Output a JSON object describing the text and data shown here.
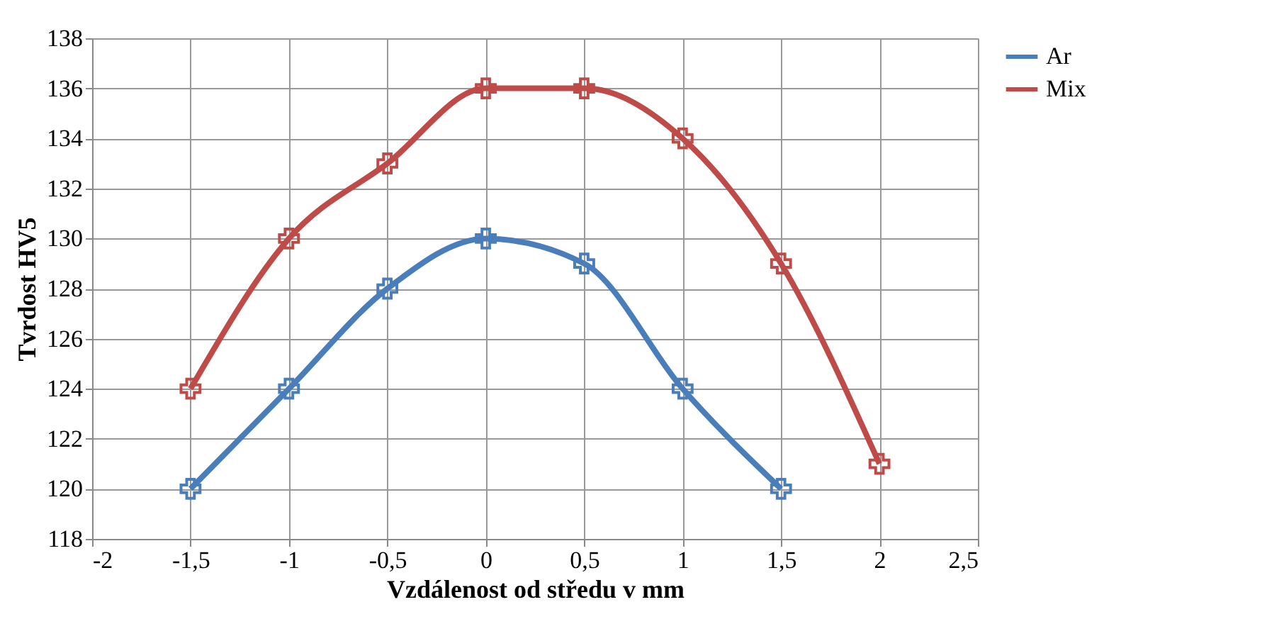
{
  "chart_data": {
    "type": "line",
    "xlabel": "Vzdálenost od středu v mm",
    "ylabel": "Tvrdost HV5",
    "series": [
      {
        "name": "Ar",
        "color": "#4a7ebb",
        "x": [
          -1.5,
          -1,
          -0.5,
          0,
          0.5,
          1,
          1.5
        ],
        "values": [
          120,
          124,
          128,
          130,
          129,
          124,
          120
        ]
      },
      {
        "name": "Mix",
        "color": "#be4b48",
        "x": [
          -1.5,
          -1,
          -0.5,
          0,
          0.5,
          1,
          1.5,
          2
        ],
        "values": [
          124,
          130,
          133,
          136,
          136,
          134,
          129,
          121
        ]
      }
    ],
    "xlim": [
      -2,
      2.5
    ],
    "xticks": [
      {
        "value": -2,
        "label": "-2"
      },
      {
        "value": -1.5,
        "label": "-1,5"
      },
      {
        "value": -1,
        "label": "-1"
      },
      {
        "value": -0.5,
        "label": "-0,5"
      },
      {
        "value": 0,
        "label": "0"
      },
      {
        "value": 0.5,
        "label": "0,5"
      },
      {
        "value": 1,
        "label": "1"
      },
      {
        "value": 1.5,
        "label": "1,5"
      },
      {
        "value": 2,
        "label": "2"
      },
      {
        "value": 2.5,
        "label": "2,5"
      }
    ],
    "ylim": [
      118,
      138
    ],
    "yticks": [
      118,
      120,
      122,
      124,
      126,
      128,
      130,
      132,
      134,
      136,
      138
    ],
    "grid": true,
    "legend": "right",
    "marker": "cross",
    "line_style": "solid"
  }
}
